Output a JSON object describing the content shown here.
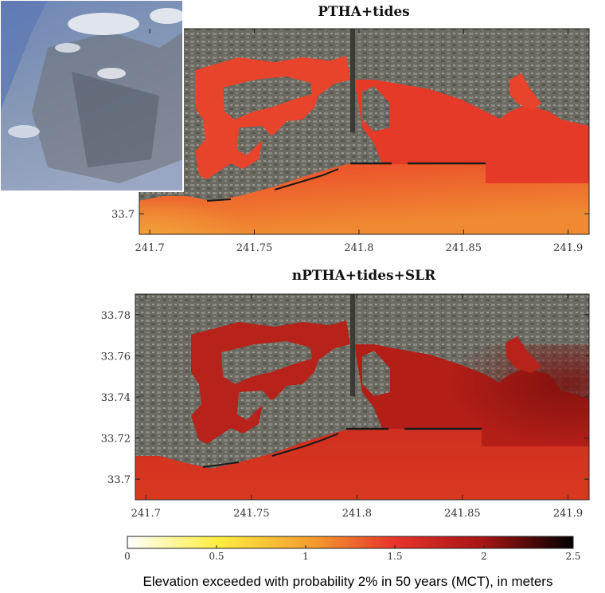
{
  "chart_data": [
    {
      "type": "heatmap",
      "title": "PTHA+tides",
      "x_ticks": [
        241.7,
        241.75,
        241.8,
        241.85,
        241.9
      ],
      "y_ticks": [
        33.7
      ],
      "xlim": [
        241.695,
        241.91
      ],
      "ylim": [
        33.69,
        33.79
      ],
      "level_label": "most ocean approx. 1.3-1.7 m"
    },
    {
      "type": "heatmap",
      "title": "nPTHA+tides+SLR",
      "x_ticks": [
        241.7,
        241.75,
        241.8,
        241.85,
        241.9
      ],
      "y_ticks": [
        33.7,
        33.72,
        33.74,
        33.76,
        33.78
      ],
      "xlim": [
        241.695,
        241.91
      ],
      "ylim": [
        33.69,
        33.79
      ],
      "level_label": "most ocean approx. 1.6-2.1 m"
    }
  ],
  "colorbar": {
    "ticks": [
      0,
      0.5,
      1,
      1.5,
      2,
      2.5
    ],
    "range": [
      0,
      2.5
    ],
    "label": "Elevation exceeded with probability 2% in 50 years (MCT), in meters",
    "colors": [
      "#ffffff",
      "#ffef40",
      "#f39a2e",
      "#e8332a",
      "#a51414",
      "#000000"
    ]
  },
  "colors": {
    "land": "#6b6a63",
    "ocean_top_light": "#f08a32",
    "ocean_top_main": "#e8402a",
    "ocean_bottom_main": "#d3301f",
    "ocean_bottom_dark": "#9a1a12",
    "photo_sky": "#7d96c6"
  }
}
